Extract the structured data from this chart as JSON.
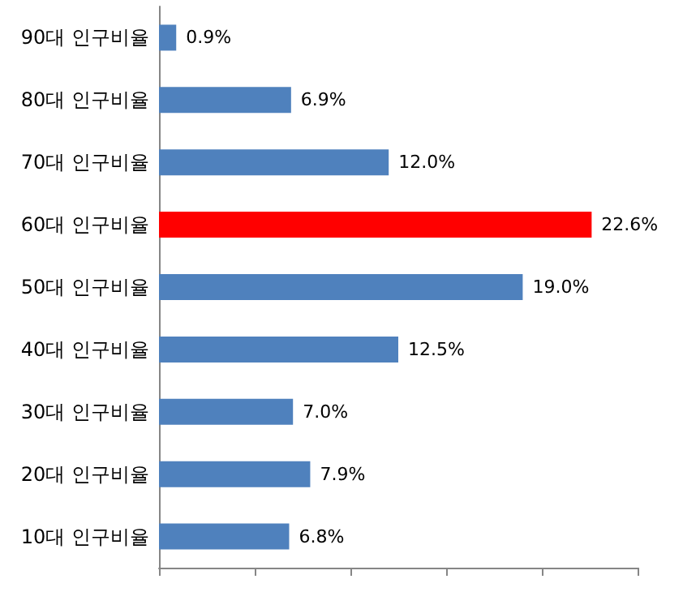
{
  "chart_data": {
    "type": "bar",
    "orientation": "horizontal",
    "categories": [
      "90대 인구비율",
      "80대 인구비율",
      "70대 인구비율",
      "60대 인구비율",
      "50대 인구비율",
      "40대 인구비율",
      "30대 인구비율",
      "20대 인구비율",
      "10대 인구비율"
    ],
    "values": [
      0.9,
      6.9,
      12.0,
      22.6,
      19.0,
      12.5,
      7.0,
      7.9,
      6.8
    ],
    "value_labels": [
      "0.9%",
      "6.9%",
      "12.0%",
      "22.6%",
      "19.0%",
      "12.5%",
      "7.0%",
      "7.9%",
      "6.8%"
    ],
    "colors": [
      "#4f81bd",
      "#4f81bd",
      "#4f81bd",
      "#ff0000",
      "#4f81bd",
      "#4f81bd",
      "#4f81bd",
      "#4f81bd",
      "#4f81bd"
    ],
    "xlim": [
      0,
      25
    ],
    "xticks": [
      {
        "value": 0,
        "label": null
      },
      {
        "value": 5,
        "label": null
      },
      {
        "value": 10,
        "label": null
      },
      {
        "value": 15,
        "label": null
      },
      {
        "value": 20,
        "label": null
      },
      {
        "value": 25,
        "label": null
      }
    ],
    "tick_labels": "y",
    "grid": false
  }
}
